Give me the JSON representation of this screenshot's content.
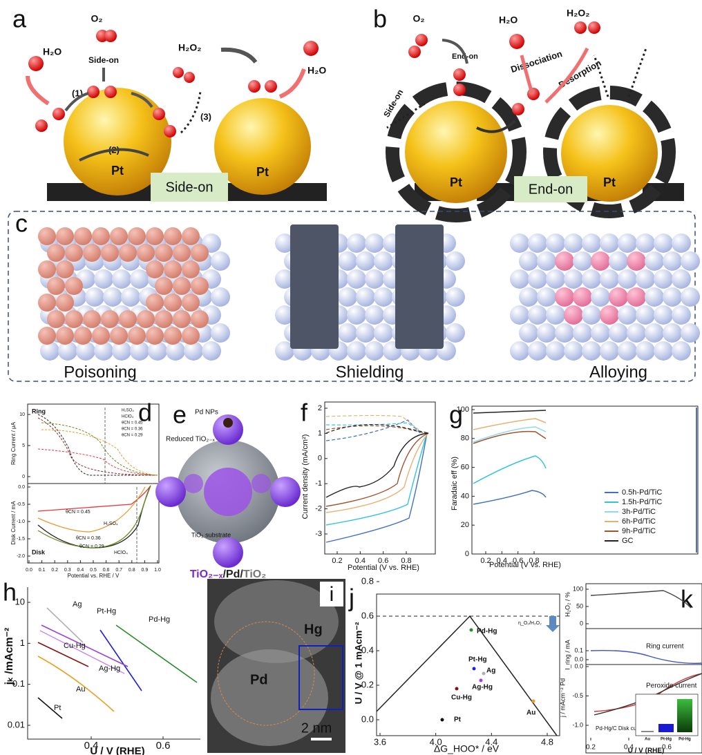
{
  "a": {
    "letter": "a",
    "o2": "O₂",
    "side_on": "Side-on",
    "h2o_left": "H₂O",
    "step1": "(1)",
    "step2": "(2)",
    "step3": "(3)",
    "h2o2": "H₂O₂",
    "h2o_right": "H₂O",
    "pt1": "Pt",
    "pt2": "Pt",
    "mode": "Side-on"
  },
  "b": {
    "letter": "b",
    "o2": "O₂",
    "end_on": "End-on",
    "side_on": "Side-on",
    "h2o": "H₂O",
    "h2o2": "H₂O₂",
    "dissociation": "Dissociation",
    "desorption": "Desorption",
    "pt1": "Pt",
    "pt2": "Pt",
    "mode": "End-on"
  },
  "c": {
    "letter": "c",
    "captions": [
      "Poisoning",
      "Shielding",
      "Alloying"
    ]
  },
  "d": {
    "letter": "d",
    "ring": "Ring",
    "disk": "Disk",
    "y_top": "Ring Current / μA",
    "y_bottom": "Disk Current / mA",
    "x_label": "Potential vs. RHE / V",
    "xticks": [
      "0.0",
      "0.1",
      "0.2",
      "0.3",
      "0.4",
      "0.5",
      "0.6",
      "0.7",
      "0.8",
      "0.9",
      "1.0"
    ],
    "yticks_top": [
      "10",
      "5",
      "0"
    ],
    "yticks_bottom": [
      "0.0",
      "-0.5",
      "-1.0",
      "-1.5",
      "-2.0"
    ],
    "legend": [
      "H₂SO₄",
      "HClO₄",
      "θCN = 0.45",
      "θCN = 0.36",
      "θCN = 0.29"
    ],
    "notes": [
      "θCN = 0.45",
      "θCN = 0.36",
      "H₂SO₄",
      "θCN = 0.29",
      "HClO₄"
    ]
  },
  "e": {
    "letter": "e",
    "pd_nps": "Pd NPs",
    "reduced": "Reduced TiO₂₋ₓ",
    "substrate": "TiO₂ substrate",
    "formula": [
      "TiO₂₋ₓ",
      "/Pd/",
      "TiO₂"
    ]
  },
  "f": {
    "letter": "f",
    "y_label": "Current density (mA/cm²)",
    "x_label": "Potential (V vs. RHE)",
    "yticks": [
      "2",
      "1",
      "0",
      "-1",
      "-2",
      "-3"
    ],
    "xticks": [
      "0.2",
      "0.4",
      "0.6",
      "0.8"
    ]
  },
  "g": {
    "letter": "g",
    "y_label": "Faradaic eff (%)",
    "x_label": "Potential (V vs. RHE)",
    "yticks": [
      "100",
      "80",
      "60",
      "40",
      "20",
      "0"
    ],
    "xticks": [
      "0.2",
      "0.4",
      "0.6",
      "0.8"
    ],
    "legend": [
      {
        "name": "0.5h-Pd/TiC",
        "color": "#3f6fc4"
      },
      {
        "name": "1.5h-Pd/TiC",
        "color": "#2ec4e0"
      },
      {
        "name": "3h-Pd/TiC",
        "color": "#8fd9ee"
      },
      {
        "name": "6h-Pd/TiC",
        "color": "#e8b070"
      },
      {
        "name": "9h-Pd/TiC",
        "color": "#a0522d"
      },
      {
        "name": "GC",
        "color": "#222222"
      }
    ]
  },
  "h": {
    "letter": "h",
    "y_label": "jₖ /mAcm⁻²",
    "x_label": "U / V (RHE)",
    "yticks": [
      "10",
      "1",
      "0.1",
      "0.01"
    ],
    "xticks": [
      "0.4",
      "0.6"
    ],
    "curves": [
      "Ag",
      "Pt-Hg",
      "Pd-Hg",
      "Cu-Hg",
      "Ag-Hg",
      "Au",
      "Pt"
    ]
  },
  "i": {
    "letter": "i",
    "hg": "Hg",
    "pd": "Pd",
    "scale": "2 nm"
  },
  "j": {
    "letter": "j",
    "y_label": "U / V @ 1 mAcm⁻²",
    "x_label": "ΔG_HOO* / eV",
    "yticks": [
      "0.8",
      "0.6",
      "0.4",
      "0.2",
      "0.0"
    ],
    "xticks": [
      "3.6",
      "4.0",
      "4.4",
      "4.8"
    ],
    "points": [
      "Pd-Hg",
      "Pt-Hg",
      "Ag",
      "Ag-Hg",
      "Cu-Hg",
      "Au",
      "Pt"
    ],
    "eta": "η_O₂/H₂O₂"
  },
  "k": {
    "letter": "k",
    "y_top": "H₂O₂ / %",
    "y_mid": "I_ring / mA",
    "y_bottom": "j / mAcm⁻² Pd",
    "yticks_top": [
      "100",
      "50",
      "0"
    ],
    "yticks_mid": [
      "0.1",
      "0.0"
    ],
    "yticks_bottom": [
      "0.0",
      "-0.5",
      "-1.0"
    ],
    "ring": "Ring current",
    "peroxide": "Peroxide current",
    "disk": "Pd-Hg/C Disk current",
    "bars": [
      "Au",
      "Pt-Hg",
      "Pd-Hg"
    ],
    "x_label": "U / V (RHE)",
    "xticks": [
      "0.2",
      "0.4",
      "0.6"
    ]
  }
}
